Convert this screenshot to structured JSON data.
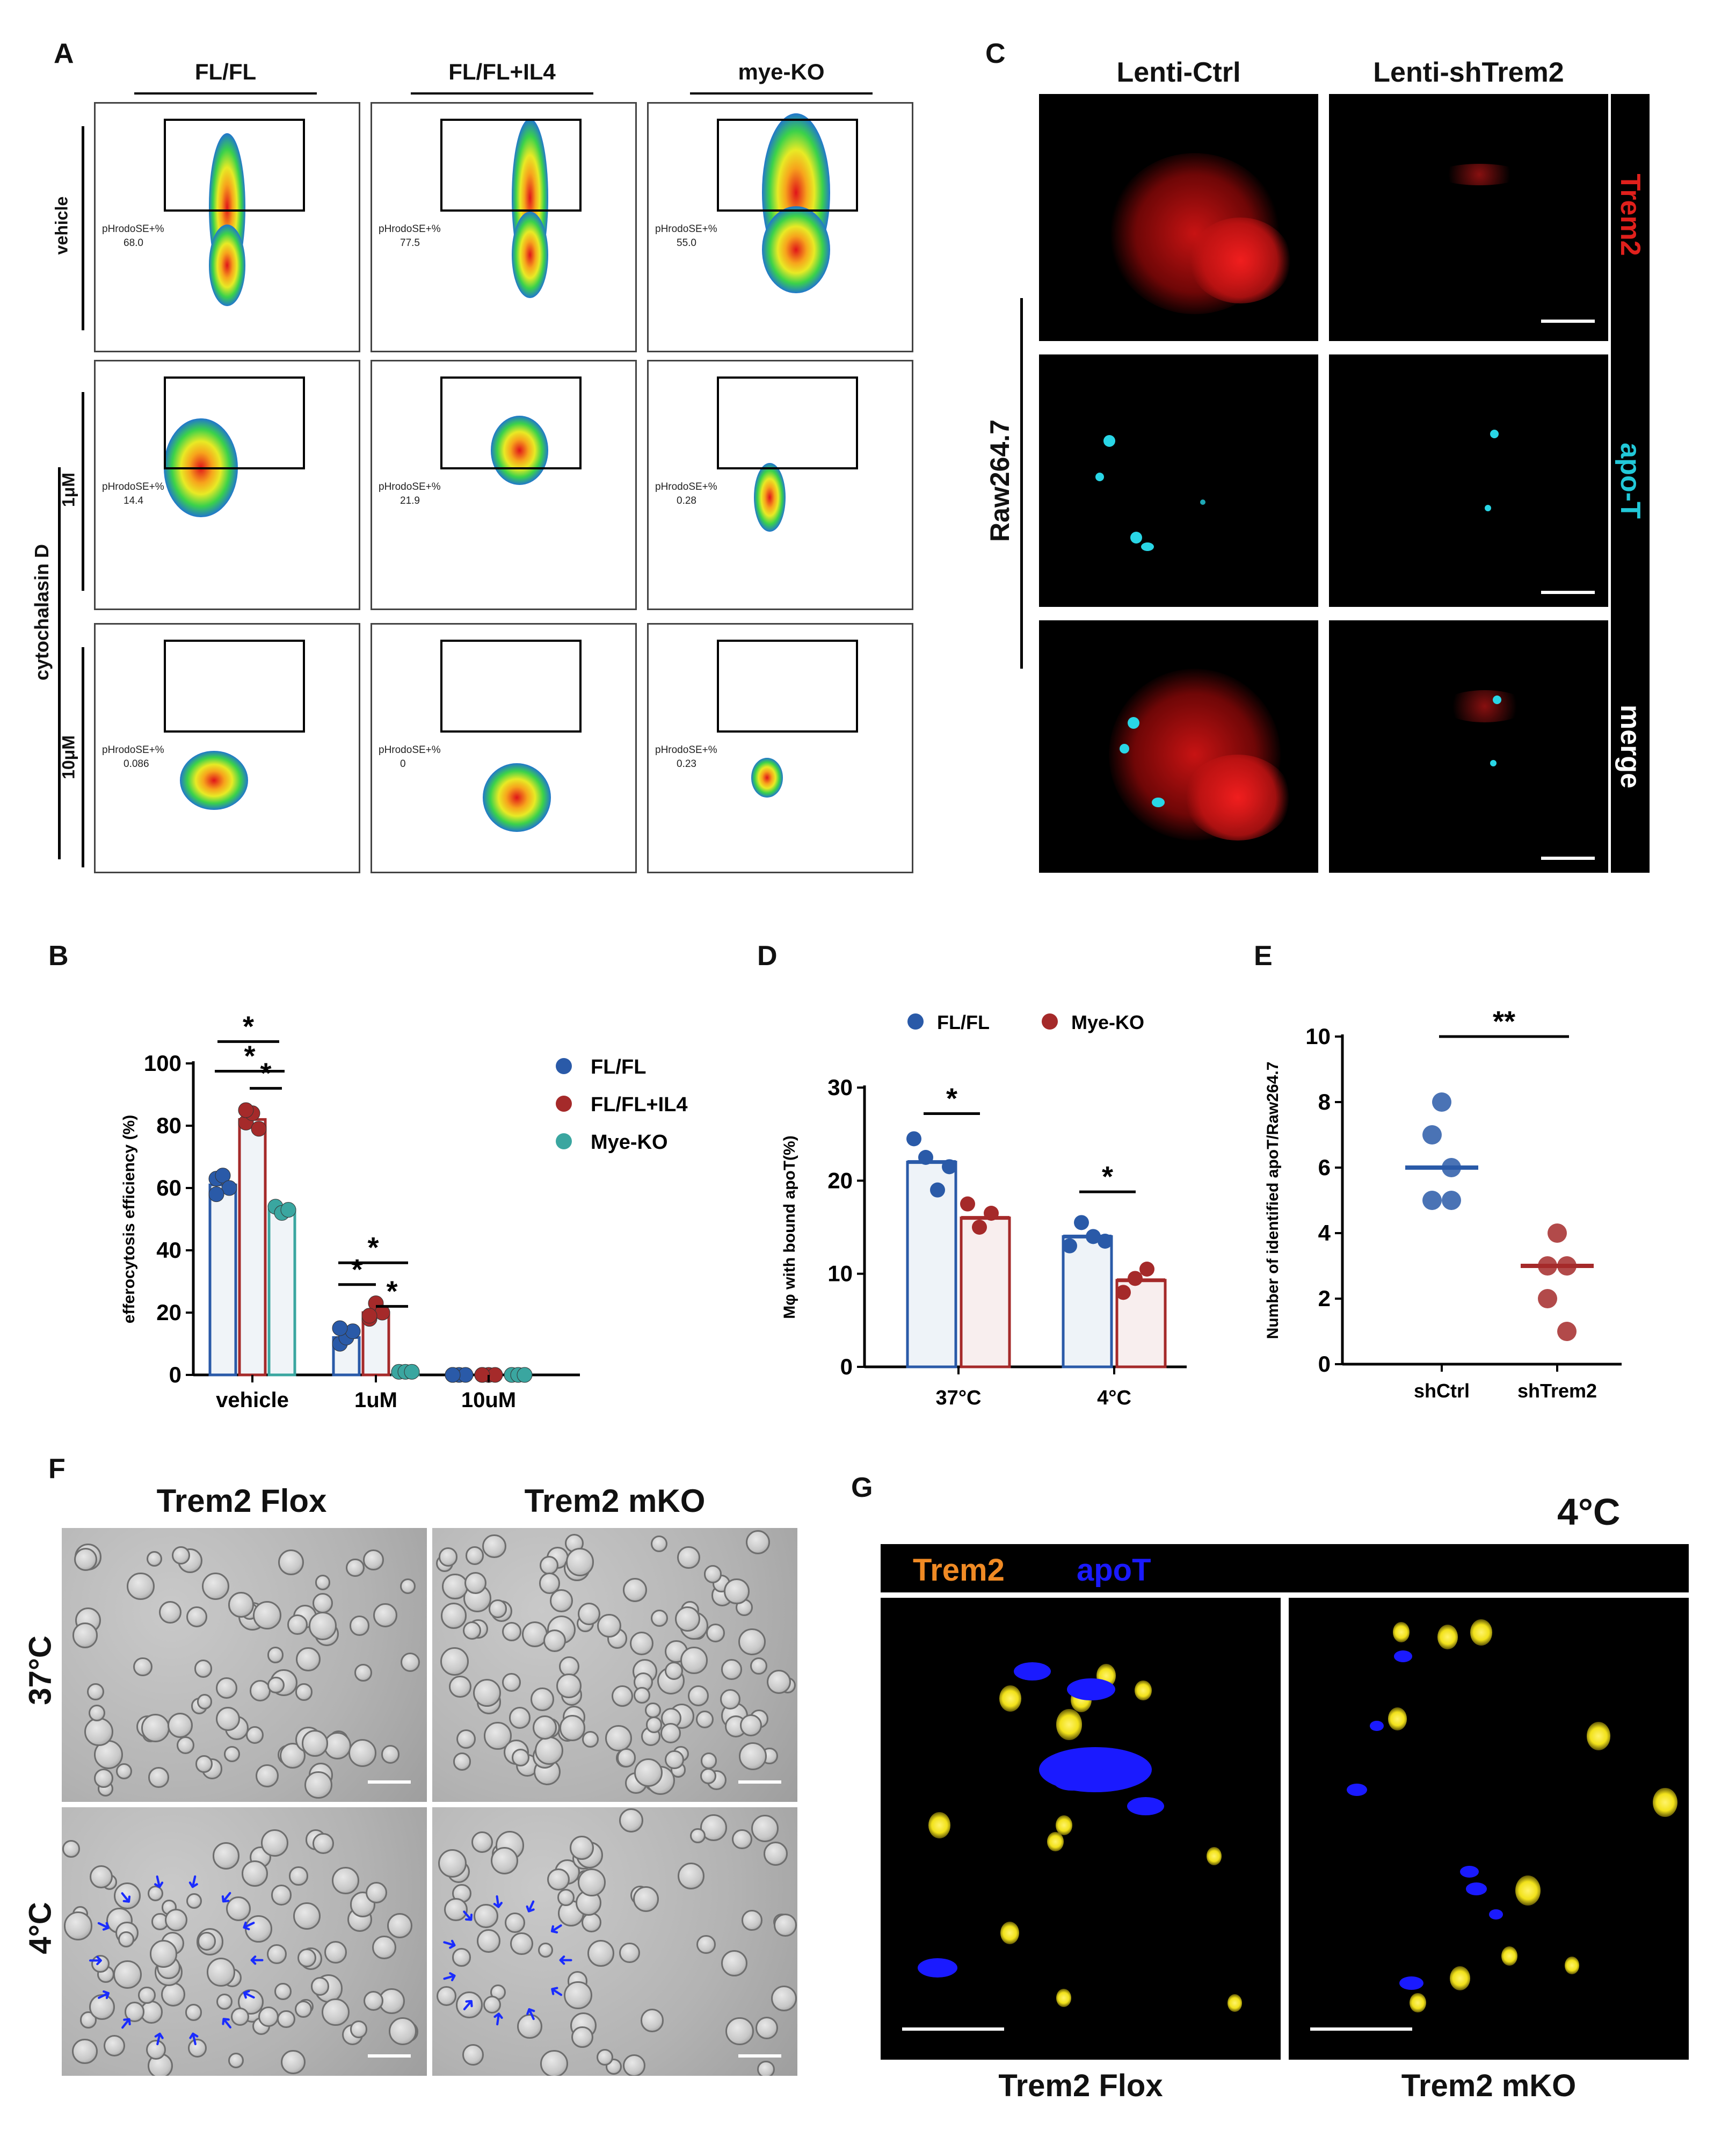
{
  "panelA": {
    "label": "A",
    "columns": [
      "FL/FL",
      "FL/FL+IL4",
      "mye-KO"
    ],
    "row_vehicle": "vehicle",
    "row_group": "cytochalasin D",
    "row_1uM": "1μM",
    "row_10uM": "10μM",
    "gate_label": "pHrodoSE+%",
    "gate_values": [
      [
        "68.0",
        "77.5",
        "55.0"
      ],
      [
        "14.4",
        "21.9",
        "0.28"
      ],
      [
        "0.086",
        "0",
        "0.23"
      ]
    ]
  },
  "panelC": {
    "label": "C",
    "columns": [
      "Lenti-Ctrl",
      "Lenti-shTrem2"
    ],
    "cell_line": "Raw264.7",
    "channels": [
      "Trem2",
      "apo-T",
      "merge"
    ],
    "colors": {
      "trem2": "#e0201c",
      "apoT": "#22c8d8",
      "merge": "#ffffff"
    }
  },
  "panelF": {
    "label": "F",
    "columns": [
      "Trem2 Flox",
      "Trem2 mKO"
    ],
    "rows": [
      "37°C",
      "4°C"
    ]
  },
  "panelG": {
    "label": "G",
    "temp": "4°C",
    "legend_trem2": "Trem2",
    "legend_apot": "apoT",
    "columns": [
      "Trem2 Flox",
      "Trem2 mKO"
    ],
    "colors": {
      "trem2": "#f08a24",
      "apoT": "#1a1aff",
      "cells": "#f2e21a"
    }
  },
  "chart_data": [
    {
      "panel": "B",
      "type": "bar",
      "categories": [
        "vehicle",
        "1uM",
        "10uM"
      ],
      "ylabel": "efferocytosis efficiency  (%)",
      "ylim": [
        0,
        100
      ],
      "yticks": [
        0,
        20,
        40,
        60,
        80,
        100
      ],
      "series": [
        {
          "name": "FL/FL",
          "values": [
            61,
            12,
            0
          ],
          "points": [
            [
              63,
              64,
              60,
              58
            ],
            [
              10,
              12,
              14,
              15
            ],
            [
              0,
              0,
              0,
              0
            ]
          ],
          "color": "#2a5aa8"
        },
        {
          "name": "FL/FL+IL4",
          "values": [
            82,
            20,
            0
          ],
          "points": [
            [
              81,
              84,
              79,
              85
            ],
            [
              18,
              23,
              20,
              19
            ],
            [
              0,
              0,
              0,
              0
            ]
          ],
          "color": "#a52a2a"
        },
        {
          "name": "Mye-KO",
          "values": [
            53,
            1,
            0
          ],
          "points": [
            [
              54,
              52,
              53
            ],
            [
              1,
              1,
              1
            ],
            [
              0,
              0,
              0
            ]
          ],
          "color": "#3aa6a0"
        }
      ],
      "significance": [
        "*",
        "*",
        "*",
        "*",
        "*",
        "*"
      ],
      "legend_position": "right"
    },
    {
      "panel": "D",
      "type": "bar",
      "categories": [
        "37°C",
        "4°C"
      ],
      "ylabel": "Mφ with bound apoT(%)",
      "ylim": [
        0,
        30
      ],
      "yticks": [
        0,
        10,
        20,
        30
      ],
      "series": [
        {
          "name": "FL/FL",
          "values": [
            22,
            14
          ],
          "points": [
            [
              24.5,
              22.5,
              19,
              21.5
            ],
            [
              13,
              15.5,
              14,
              13.5
            ]
          ],
          "color": "#2a5aa8"
        },
        {
          "name": "Mye-KO",
          "values": [
            16,
            9.3
          ],
          "points": [
            [
              17.5,
              15,
              16.5
            ],
            [
              8,
              9.5,
              10.5
            ]
          ],
          "color": "#a52a2a"
        }
      ],
      "significance": [
        "*",
        "*"
      ],
      "legend_position": "top"
    },
    {
      "panel": "E",
      "type": "scatter",
      "categories": [
        "shCtrl",
        "shTrem2"
      ],
      "ylabel": "Number of identified apoT/Raw264.7",
      "ylim": [
        0,
        10
      ],
      "yticks": [
        0,
        2,
        4,
        6,
        8,
        10
      ],
      "series": [
        {
          "name": "shCtrl",
          "points": [
            8,
            7,
            6,
            5,
            5
          ],
          "median": 6,
          "color": "#2a5aa8"
        },
        {
          "name": "shTrem2",
          "points": [
            4,
            3,
            3,
            2,
            1
          ],
          "median": 3,
          "color": "#a52a2a"
        }
      ],
      "significance": [
        "**"
      ]
    }
  ]
}
